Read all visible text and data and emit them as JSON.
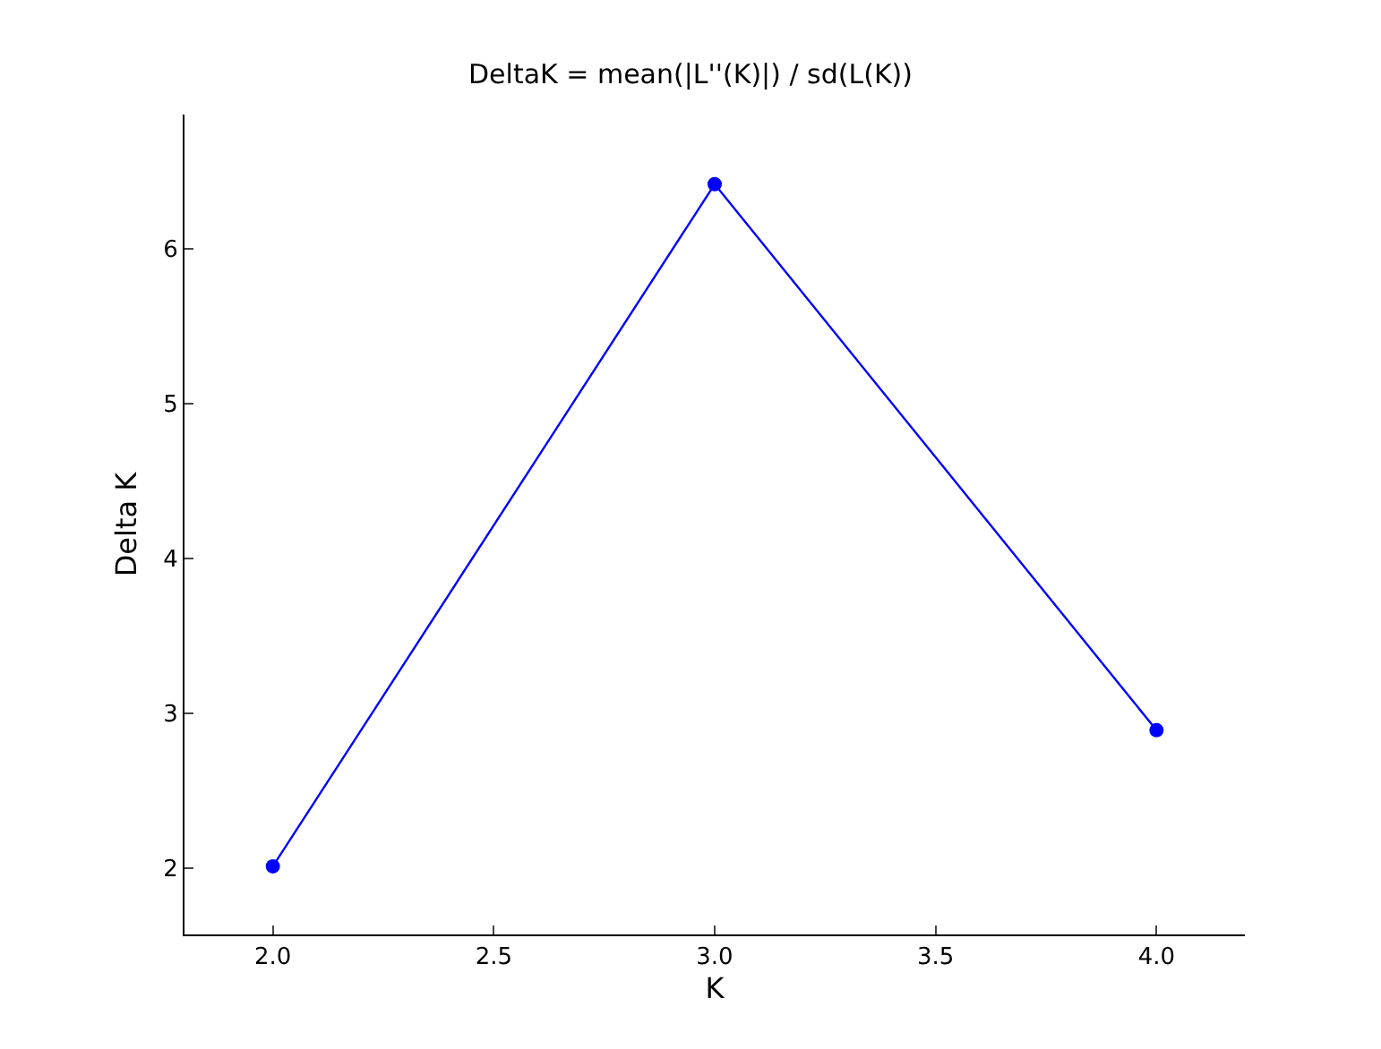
{
  "chart_data": {
    "type": "line",
    "title": "DeltaK = mean(|L''(K)|) / sd(L(K))",
    "xlabel": "K",
    "ylabel": "Delta K",
    "x": [
      2.0,
      3.0,
      4.0
    ],
    "series": [
      {
        "color": "#0000ff",
        "values": [
          2.01,
          6.42,
          2.89
        ]
      }
    ],
    "xlim": [
      1.8,
      4.2
    ],
    "xticks": [
      {
        "value": 2,
        "label": "2.0"
      },
      {
        "value": 2.5,
        "label": "2.5"
      },
      {
        "value": 3,
        "label": "3.0"
      },
      {
        "value": 3.5,
        "label": "3.5"
      },
      {
        "value": 4,
        "label": "4.0"
      }
    ],
    "ylim": [
      1.57,
      6.87
    ],
    "yticks": [
      2,
      3,
      4,
      5,
      6
    ],
    "grid": false,
    "legend": false,
    "marker": "circle",
    "line_style": "solid"
  }
}
